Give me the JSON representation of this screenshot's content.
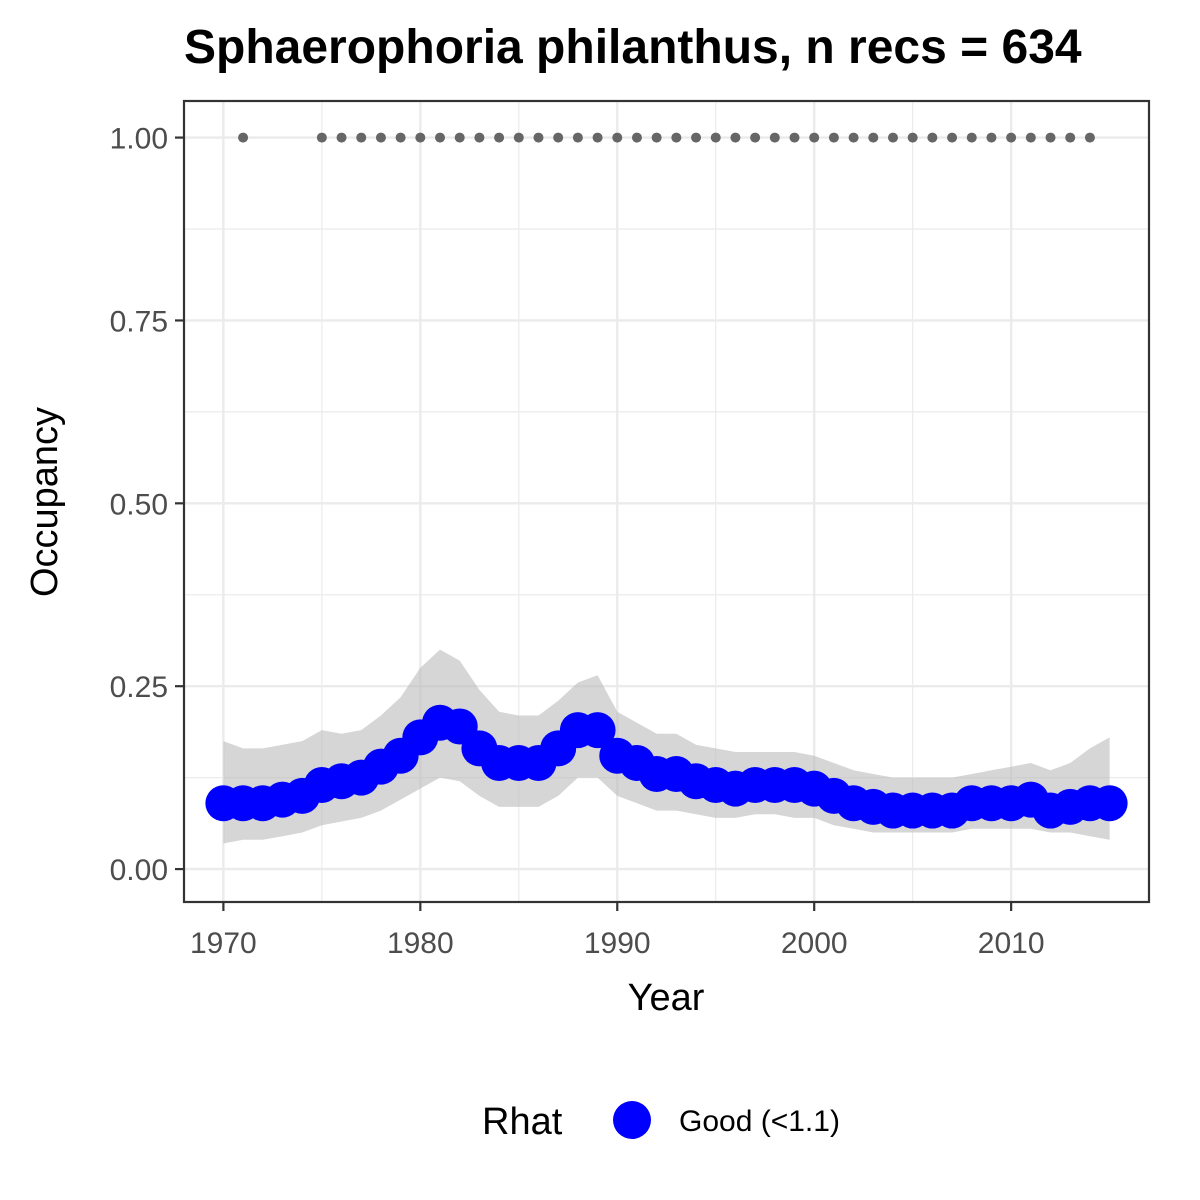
{
  "chart_data": {
    "type": "line",
    "title": "Sphaerophoria philanthus, n recs = 634",
    "xlabel": "Year",
    "ylabel": "Occupancy",
    "xlim": [
      1968,
      2017
    ],
    "ylim": [
      -0.045,
      1.05
    ],
    "x_ticks": [
      1970,
      1980,
      1990,
      2000,
      2010
    ],
    "x_tick_labels": [
      "1970",
      "1980",
      "1990",
      "2000",
      "2010"
    ],
    "y_ticks": [
      0,
      0.25,
      0.5,
      0.75,
      1
    ],
    "y_tick_labels": [
      "0.00",
      "0.25",
      "0.50",
      "0.75",
      "1.00"
    ],
    "grid": true,
    "colors": {
      "series": "#0000ff",
      "ribbon": "#bdbdbd",
      "record_points": "#666666",
      "grid": "#ebebeb",
      "panel_border": "#333333"
    },
    "series": [
      {
        "name": "Good (<1.1)",
        "x": [
          1970,
          1971,
          1972,
          1973,
          1974,
          1975,
          1976,
          1977,
          1978,
          1979,
          1980,
          1981,
          1982,
          1983,
          1984,
          1985,
          1986,
          1987,
          1988,
          1989,
          1990,
          1991,
          1992,
          1993,
          1994,
          1995,
          1996,
          1997,
          1998,
          1999,
          2000,
          2001,
          2002,
          2003,
          2004,
          2005,
          2006,
          2007,
          2008,
          2009,
          2010,
          2011,
          2012,
          2013,
          2014,
          2015
        ],
        "values": [
          0.09,
          0.09,
          0.09,
          0.095,
          0.1,
          0.115,
          0.12,
          0.125,
          0.14,
          0.155,
          0.18,
          0.2,
          0.195,
          0.165,
          0.145,
          0.145,
          0.145,
          0.165,
          0.19,
          0.19,
          0.155,
          0.145,
          0.13,
          0.13,
          0.12,
          0.115,
          0.11,
          0.115,
          0.115,
          0.115,
          0.11,
          0.1,
          0.09,
          0.085,
          0.08,
          0.08,
          0.08,
          0.08,
          0.09,
          0.09,
          0.09,
          0.095,
          0.08,
          0.085,
          0.09,
          0.09
        ],
        "lower": [
          0.035,
          0.04,
          0.04,
          0.045,
          0.05,
          0.06,
          0.065,
          0.07,
          0.08,
          0.095,
          0.11,
          0.125,
          0.12,
          0.1,
          0.085,
          0.085,
          0.085,
          0.1,
          0.125,
          0.125,
          0.1,
          0.09,
          0.08,
          0.08,
          0.075,
          0.07,
          0.07,
          0.075,
          0.075,
          0.07,
          0.07,
          0.06,
          0.055,
          0.05,
          0.05,
          0.05,
          0.05,
          0.05,
          0.055,
          0.055,
          0.055,
          0.055,
          0.05,
          0.05,
          0.045,
          0.04
        ],
        "upper": [
          0.175,
          0.165,
          0.165,
          0.17,
          0.175,
          0.19,
          0.185,
          0.19,
          0.21,
          0.235,
          0.275,
          0.3,
          0.285,
          0.245,
          0.215,
          0.21,
          0.21,
          0.23,
          0.255,
          0.265,
          0.215,
          0.2,
          0.185,
          0.185,
          0.17,
          0.165,
          0.16,
          0.16,
          0.16,
          0.16,
          0.155,
          0.145,
          0.135,
          0.13,
          0.125,
          0.125,
          0.125,
          0.125,
          0.13,
          0.135,
          0.14,
          0.145,
          0.135,
          0.145,
          0.165,
          0.18
        ]
      }
    ],
    "record_years": [
      1971,
      1975,
      1976,
      1977,
      1978,
      1979,
      1980,
      1981,
      1982,
      1983,
      1984,
      1985,
      1986,
      1987,
      1988,
      1989,
      1990,
      1991,
      1992,
      1993,
      1994,
      1995,
      1996,
      1997,
      1998,
      1999,
      2000,
      2001,
      2002,
      2003,
      2004,
      2005,
      2006,
      2007,
      2008,
      2009,
      2010,
      2011,
      2012,
      2013,
      2014
    ],
    "record_value": 1.0,
    "legend": {
      "title": "Rhat",
      "entries": [
        "Good (<1.1)"
      ],
      "position": "bottom"
    }
  }
}
